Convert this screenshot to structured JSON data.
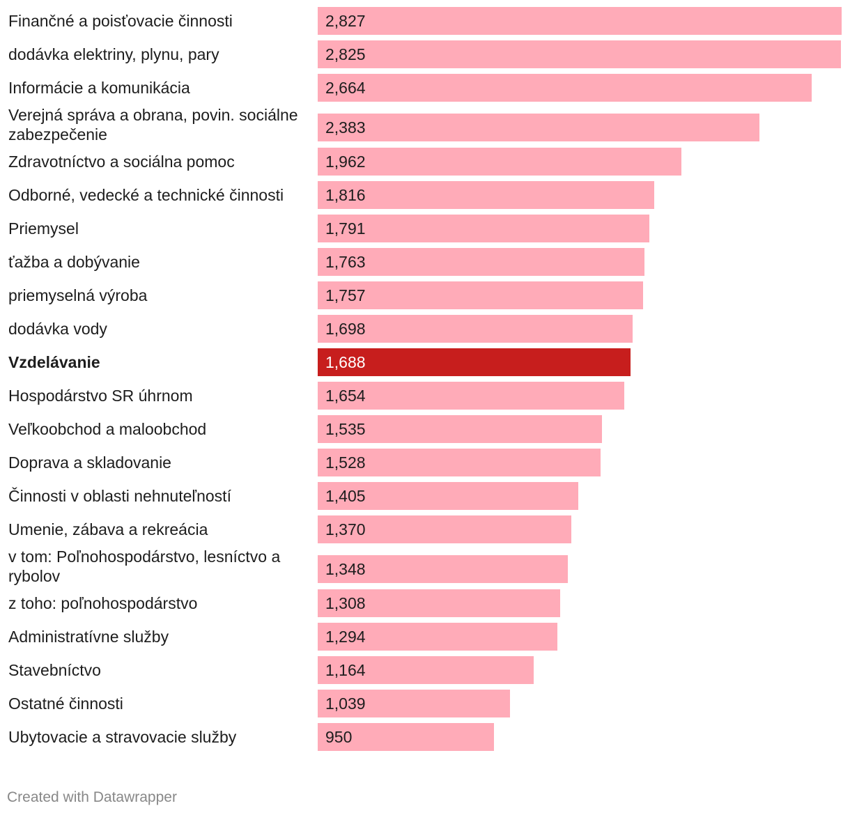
{
  "chart_data": {
    "type": "bar",
    "orientation": "horizontal",
    "title": "",
    "xlabel": "",
    "ylabel": "",
    "xlim": [
      0,
      2827
    ],
    "grid": false,
    "categories": [
      "Finančné a poisťovacie činnosti",
      "dodávka elektriny, plynu, pary",
      "Informácie a komunikácia",
      "Verejná správa a obrana, povin. sociálne zabezpečenie",
      "Zdravotníctvo a sociálna pomoc",
      "Odborné, vedecké a technické činnosti",
      "Priemysel",
      "ťažba a dobývanie",
      "priemyselná výroba",
      "dodávka vody",
      "Vzdelávanie",
      "Hospodárstvo SR úhrnom",
      "Veľkoobchod a maloobchod",
      "Doprava a skladovanie",
      "Činnosti v oblasti nehnuteľností",
      "Umenie, zábava a rekreácia",
      "v tom: Poľnohospodárstvo, lesníctvo a rybolov",
      "z toho: poľnohospodárstvo",
      "Administratívne služby",
      "Stavebníctvo",
      "Ostatné činnosti",
      "Ubytovacie a stravovacie služby"
    ],
    "values": [
      2827,
      2825,
      2664,
      2383,
      1962,
      1816,
      1791,
      1763,
      1757,
      1698,
      1688,
      1654,
      1535,
      1528,
      1405,
      1370,
      1348,
      1308,
      1294,
      1164,
      1039,
      950
    ],
    "value_labels": [
      "2,827",
      "2,825",
      "2,664",
      "2,383",
      "1,962",
      "1,816",
      "1,791",
      "1,763",
      "1,757",
      "1,698",
      "1,688",
      "1,654",
      "1,535",
      "1,528",
      "1,405",
      "1,370",
      "1,348",
      "1,308",
      "1,294",
      "1,164",
      "1,039",
      "950"
    ],
    "highlight": "Vzdelávanie",
    "colors": {
      "bar": "#ffabb8",
      "highlight": "#c71e1d",
      "label": "#1d1d1d",
      "highlight_label": "#ffffff"
    }
  },
  "footer": {
    "credit": "Created with Datawrapper"
  }
}
